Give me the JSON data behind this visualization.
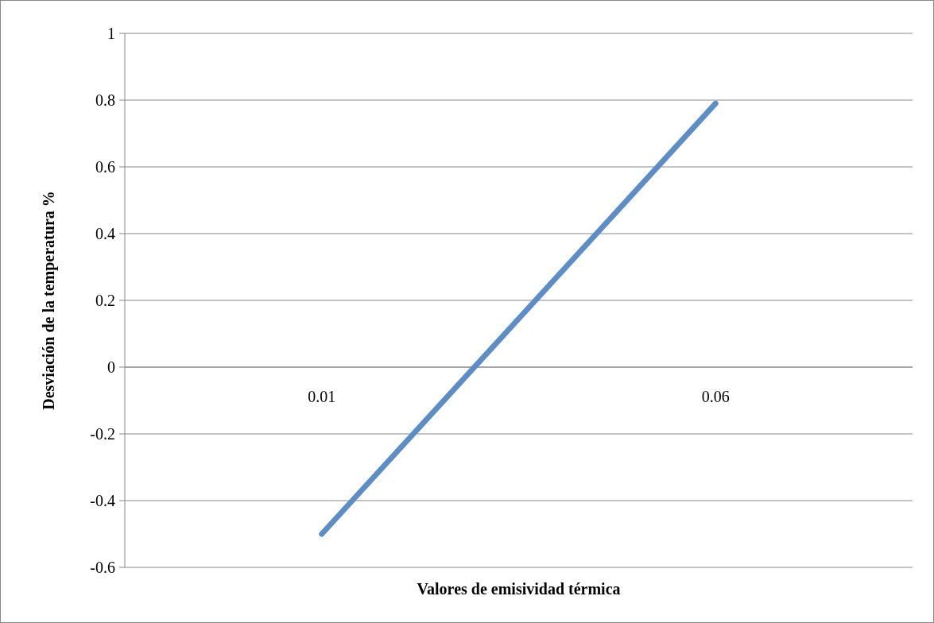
{
  "chart_data": {
    "type": "line",
    "xlabel": "Valores de emisividad térmica",
    "ylabel": "Desviación de la temperatura %",
    "categories": [
      "0.01",
      "0.06"
    ],
    "series": [
      {
        "color": "#5b8ec8",
        "values": [
          -0.5,
          0.79
        ]
      }
    ],
    "ylim": [
      -0.6,
      1
    ],
    "yticks": [
      -0.6,
      -0.4,
      -0.2,
      0,
      0.2,
      0.4,
      0.6,
      0.8,
      1
    ],
    "grid": "y",
    "marker": "none",
    "line_style": "solid"
  }
}
